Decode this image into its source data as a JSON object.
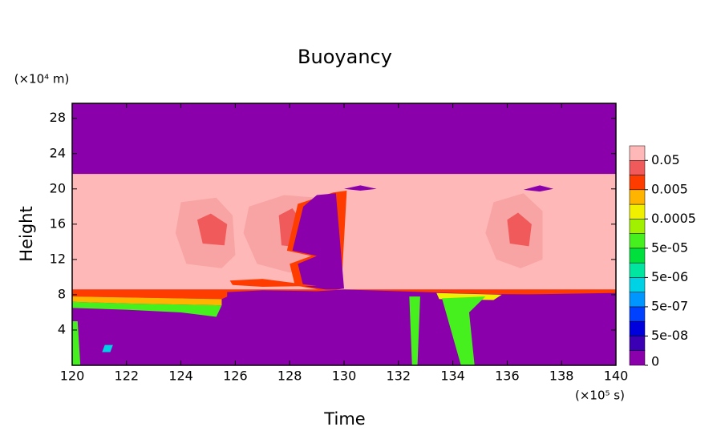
{
  "chart_data": {
    "type": "contour",
    "title": "Buoyancy",
    "xlabel": "Time",
    "ylabel": "Height",
    "xunit": "(×10⁵ s)",
    "yunit": "(×10⁴ m)",
    "xlim": [
      120,
      140
    ],
    "ylim": [
      0,
      29.7
    ],
    "xticks": [
      120,
      122,
      124,
      126,
      128,
      130,
      132,
      134,
      136,
      138,
      140
    ],
    "yticks": [
      4,
      8,
      12,
      16,
      20,
      24,
      28
    ],
    "colorbar": {
      "colors": [
        "#8a00aa",
        "#3c00b4",
        "#0000dc",
        "#0040ff",
        "#0096ff",
        "#00d2e6",
        "#00e6a0",
        "#00e03c",
        "#46f01e",
        "#a0f000",
        "#f0f000",
        "#ffb400",
        "#ff3c00",
        "#f05a5a",
        "#ffb8b8"
      ],
      "ticks": [
        0,
        {
          "value": 5e-08,
          "label": "5e-08"
        },
        {
          "value": 5e-07,
          "label": "5e-07"
        },
        {
          "value": 5e-06,
          "label": "5e-06"
        },
        {
          "value": 5e-05,
          "label": "5e-05"
        },
        0.0005,
        0.005,
        0.05
      ]
    },
    "regions": [
      {
        "color": "#ffb8b8",
        "x": [
          120,
          140,
          140,
          120
        ],
        "y": [
          21.7,
          21.7,
          8.6,
          8.6
        ]
      },
      {
        "color": "#f8a4a4",
        "x": [
          124,
          125.3,
          125.9,
          126,
          125.5,
          124.2,
          123.8
        ],
        "y": [
          18.5,
          19,
          17,
          12.5,
          11,
          11.5,
          15
        ]
      },
      {
        "color": "#f8a4a4",
        "x": [
          126.5,
          127.8,
          129,
          129,
          128,
          126.8,
          126.3
        ],
        "y": [
          18,
          19.3,
          19,
          11,
          10.5,
          11.5,
          15
        ]
      },
      {
        "color": "#f8a4a4",
        "x": [
          135.5,
          136.6,
          137.3,
          137.3,
          136.5,
          135.6,
          135.2
        ],
        "y": [
          18.5,
          19.5,
          17.5,
          12,
          11,
          12,
          15
        ]
      },
      {
        "color": "#f05a5a",
        "x": [
          124.6,
          125.1,
          125.7,
          125.6,
          124.8
        ],
        "y": [
          16.5,
          17.2,
          16,
          13.6,
          13.8
        ]
      },
      {
        "color": "#f05a5a",
        "x": [
          127.6,
          128.1,
          128.4,
          128.3,
          127.7
        ],
        "y": [
          17,
          17.8,
          16.5,
          13.4,
          13.6
        ]
      },
      {
        "color": "#f05a5a",
        "x": [
          136,
          136.4,
          136.9,
          136.8,
          136.1
        ],
        "y": [
          16.5,
          17.3,
          16,
          13.5,
          13.8
        ]
      },
      {
        "color": "#ff3c00",
        "x": [
          128.3,
          129.2,
          129.9,
          130.1,
          129.6,
          128.3,
          127.9,
          128.8,
          128,
          128.2
        ],
        "y": [
          9,
          8.5,
          8.7,
          19.8,
          19.6,
          18.3,
          13,
          12.4,
          11.5,
          9
        ]
      },
      {
        "color": "#8a00aa",
        "x": [
          128.5,
          129.5,
          130,
          129.7,
          129,
          128.5,
          128.1,
          129,
          128.3,
          128.5
        ],
        "y": [
          9,
          8.5,
          8.7,
          19.5,
          19.3,
          18,
          13,
          12.4,
          11.5,
          9
        ]
      },
      {
        "color": "#ff3c00",
        "x": [
          120,
          140,
          140,
          126,
          125.5,
          120
        ],
        "y": [
          8.6,
          8.6,
          8.0,
          8.2,
          7.5,
          7.8
        ]
      },
      {
        "color": "#ff3c00",
        "x": [
          125.8,
          127,
          129,
          127,
          125.9
        ],
        "y": [
          9.6,
          9.8,
          9,
          8.9,
          9.1
        ]
      },
      {
        "color": "#ffb400",
        "x": [
          120,
          125.5,
          125.5,
          122,
          120
        ],
        "y": [
          7.8,
          7.5,
          6.8,
          7.0,
          7.2
        ]
      },
      {
        "color": "#46f01e",
        "x": [
          120,
          122,
          125.5,
          125.3,
          124,
          122,
          120
        ],
        "y": [
          7.2,
          7.0,
          6.8,
          5.5,
          6,
          6.3,
          6.5
        ]
      },
      {
        "color": "#8a00aa",
        "x": [
          125.7,
          125.7,
          127,
          129,
          130,
          133,
          136,
          140,
          140
        ],
        "y": [
          0,
          8.3,
          8.5,
          8.4,
          8.6,
          8.3,
          8.0,
          8.2,
          0
        ]
      },
      {
        "color": "#f0f000",
        "x": [
          133.4,
          135.8,
          135.5,
          133.5
        ],
        "y": [
          8.2,
          8.0,
          7.4,
          7.5
        ]
      },
      {
        "color": "#46f01e",
        "x": [
          134.3,
          134.8,
          134.6,
          135.2,
          133.6
        ],
        "y": [
          0,
          0,
          6,
          7.8,
          7.6
        ]
      },
      {
        "color": "#46f01e",
        "x": [
          132.5,
          132.7,
          132.8,
          132.4
        ],
        "y": [
          0,
          0,
          7.8,
          7.8
        ]
      },
      {
        "color": "#46f01e",
        "x": [
          120,
          120.3,
          120.2,
          120
        ],
        "y": [
          0,
          0,
          5,
          5
        ]
      },
      {
        "color": "#00d2e6",
        "x": [
          121.2,
          121.5,
          121.4,
          121.1
        ],
        "y": [
          2.3,
          2.3,
          1.5,
          1.5
        ]
      },
      {
        "color": "#8a00aa",
        "x": [
          130,
          130.6,
          131.2,
          130.6
        ],
        "y": [
          20,
          20.4,
          20,
          19.8
        ]
      },
      {
        "color": "#8a00aa",
        "x": [
          136.6,
          137.2,
          137.7,
          137.2
        ],
        "y": [
          19.9,
          20.4,
          20,
          19.7
        ]
      }
    ]
  }
}
